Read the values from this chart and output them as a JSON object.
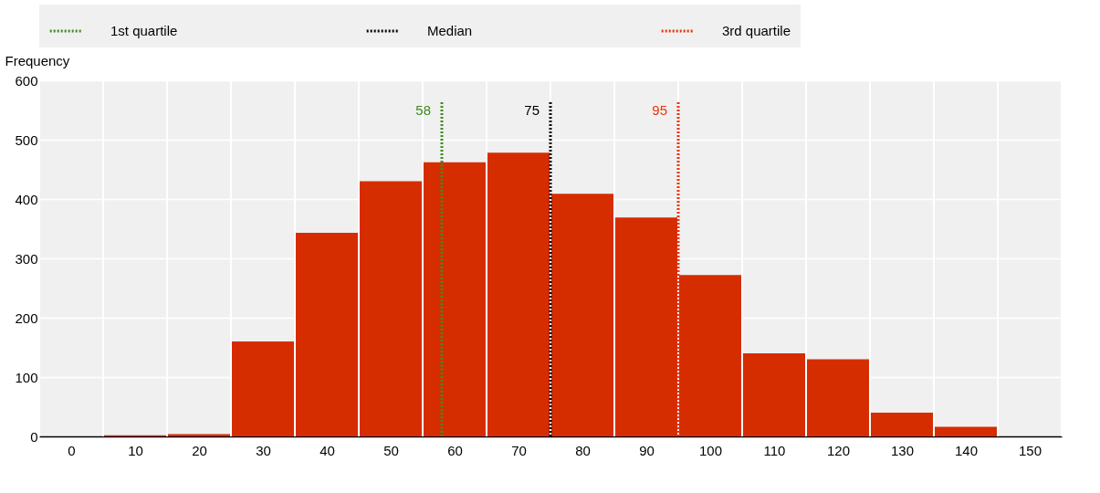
{
  "chart_data": {
    "type": "histogram",
    "ylabel": "Frequency",
    "bins": [
      -5,
      5,
      15,
      25,
      35,
      45,
      55,
      65,
      75,
      85,
      95,
      105,
      115,
      125,
      135,
      145,
      155
    ],
    "values": [
      0,
      2,
      4,
      160,
      343,
      430,
      462,
      478,
      409,
      369,
      272,
      140,
      130,
      40,
      16,
      0
    ],
    "color": "#d62d00",
    "xlim": [
      -5,
      155
    ],
    "xticks": [
      0,
      10,
      20,
      30,
      40,
      50,
      60,
      70,
      80,
      90,
      100,
      110,
      120,
      130,
      140,
      150
    ],
    "ylim": [
      0,
      600
    ],
    "yticks": [
      0,
      100,
      200,
      300,
      400,
      500,
      600
    ],
    "grid": true,
    "legend": "top",
    "annotations": [
      {
        "text": "58",
        "x": 58,
        "y": 550
      },
      {
        "text": "75",
        "x": 75,
        "y": 550
      },
      {
        "text": "95",
        "x": 95,
        "y": 550
      }
    ],
    "ref_lines": [
      {
        "axis": "x",
        "value": 58,
        "label": "1st quartile",
        "color": "#3d8b1f",
        "line_style": "dotted"
      },
      {
        "axis": "x",
        "value": 75,
        "label": "Median",
        "color": "#000000",
        "line_style": "dotted"
      },
      {
        "axis": "x",
        "value": 95,
        "label": "3rd quartile",
        "color": "#e8340a",
        "line_style": "dotted"
      }
    ]
  }
}
